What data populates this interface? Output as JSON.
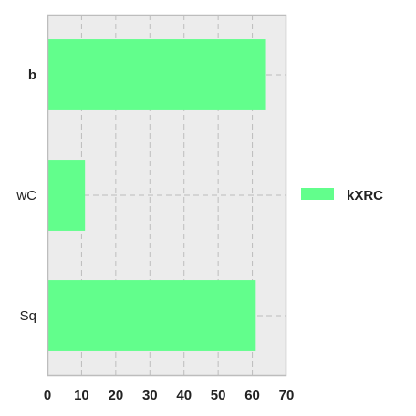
{
  "chart_data": {
    "type": "bar",
    "orientation": "horizontal",
    "categories": [
      "b",
      "wC",
      "Sq"
    ],
    "series": [
      {
        "name": "kXRC",
        "values": [
          64,
          11,
          61
        ]
      }
    ],
    "xlim": [
      0,
      70
    ],
    "xticks": [
      "0",
      "10",
      "20",
      "30",
      "40",
      "50",
      "60",
      "70"
    ],
    "grid": true,
    "legend_position": "right",
    "colors": {
      "bar": "#62fe8c",
      "plot_background": "#ececec",
      "grid": "#bdbdbd",
      "frame": "#bdbdbd"
    }
  }
}
